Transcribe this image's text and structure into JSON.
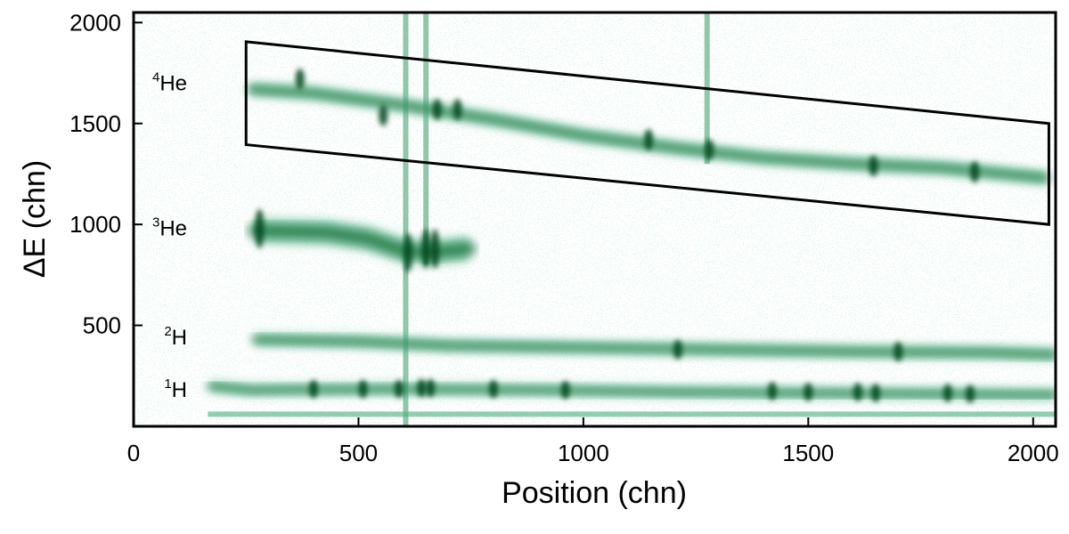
{
  "chart_data": {
    "type": "heatmap",
    "title": "",
    "xlabel": "Position (chn)",
    "ylabel": "ΔE (chn)",
    "xlim": [
      0,
      2050
    ],
    "ylim": [
      0,
      2050
    ],
    "x_ticks": [
      0,
      500,
      1000,
      1500,
      2000
    ],
    "y_ticks": [
      500,
      1000,
      1500,
      2000
    ],
    "x_tick_labels": [
      "0",
      "500",
      "1000",
      "1500",
      "2000"
    ],
    "y_tick_labels": [
      "500",
      "1000",
      "1500",
      "2000"
    ],
    "grid": false,
    "colors": {
      "light": "#7cc9a6",
      "medium": "#3a9a67",
      "dark": "#0b6a35",
      "darkest": "#06451f",
      "axis": "#000000"
    },
    "bands": [
      {
        "id": "he4",
        "mass": "4",
        "element": "He",
        "label_y": 1700,
        "points": [
          [
            260,
            1670
          ],
          [
            400,
            1650
          ],
          [
            600,
            1590
          ],
          [
            800,
            1520
          ],
          [
            1000,
            1440
          ],
          [
            1200,
            1380
          ],
          [
            1400,
            1330
          ],
          [
            1600,
            1300
          ],
          [
            1800,
            1280
          ],
          [
            2030,
            1230
          ]
        ],
        "thickness": 70,
        "x_end": 2030,
        "spots": [
          [
            370,
            1720
          ],
          [
            555,
            1540
          ],
          [
            675,
            1570
          ],
          [
            720,
            1570
          ],
          [
            1145,
            1420
          ],
          [
            1280,
            1370
          ],
          [
            1645,
            1290
          ],
          [
            1870,
            1260
          ]
        ]
      },
      {
        "id": "he3",
        "mass": "3",
        "element": "He",
        "label_y": 980,
        "points": [
          [
            270,
            970
          ],
          [
            430,
            960
          ],
          [
            520,
            930
          ],
          [
            600,
            870
          ],
          [
            660,
            860
          ],
          [
            745,
            880
          ]
        ],
        "thickness": 130,
        "x_end": 745,
        "spots": [
          [
            280,
            980
          ],
          [
            610,
            860
          ],
          [
            650,
            880
          ],
          [
            670,
            880
          ]
        ]
      },
      {
        "id": "h2",
        "mass": "2",
        "element": "H",
        "label_y": 440,
        "points": [
          [
            270,
            430
          ],
          [
            500,
            420
          ],
          [
            700,
            400
          ],
          [
            1000,
            390
          ],
          [
            1300,
            380
          ],
          [
            1600,
            370
          ],
          [
            1900,
            365
          ],
          [
            2050,
            355
          ]
        ],
        "thickness": 65,
        "x_end": 2050,
        "spots": [
          [
            1210,
            380
          ],
          [
            1700,
            370
          ]
        ]
      },
      {
        "id": "h1",
        "mass": "1",
        "element": "H",
        "label_y": 180,
        "points": [
          [
            170,
            200
          ],
          [
            260,
            180
          ],
          [
            600,
            185
          ],
          [
            900,
            180
          ],
          [
            1200,
            170
          ],
          [
            1500,
            165
          ],
          [
            1800,
            160
          ],
          [
            2050,
            155
          ]
        ],
        "thickness": 60,
        "x_end": 2050,
        "spots": [
          [
            400,
            185
          ],
          [
            510,
            185
          ],
          [
            590,
            185
          ],
          [
            640,
            190
          ],
          [
            660,
            190
          ],
          [
            800,
            185
          ],
          [
            960,
            180
          ],
          [
            1420,
            175
          ],
          [
            1500,
            170
          ],
          [
            1610,
            170
          ],
          [
            1650,
            165
          ],
          [
            1810,
            165
          ],
          [
            1860,
            160
          ]
        ]
      }
    ],
    "streaks": [
      {
        "x": 605,
        "y_from": 0,
        "y_to": 2050
      },
      {
        "x": 650,
        "y_from": 800,
        "y_to": 2050
      },
      {
        "x": 1275,
        "y_from": 1300,
        "y_to": 2050
      }
    ],
    "selection_polygon": {
      "x_min": 250,
      "x_max": 2035,
      "top_left": 1905,
      "bottom_left": 1395,
      "top_right": 1500,
      "bottom_right": 1000
    }
  }
}
